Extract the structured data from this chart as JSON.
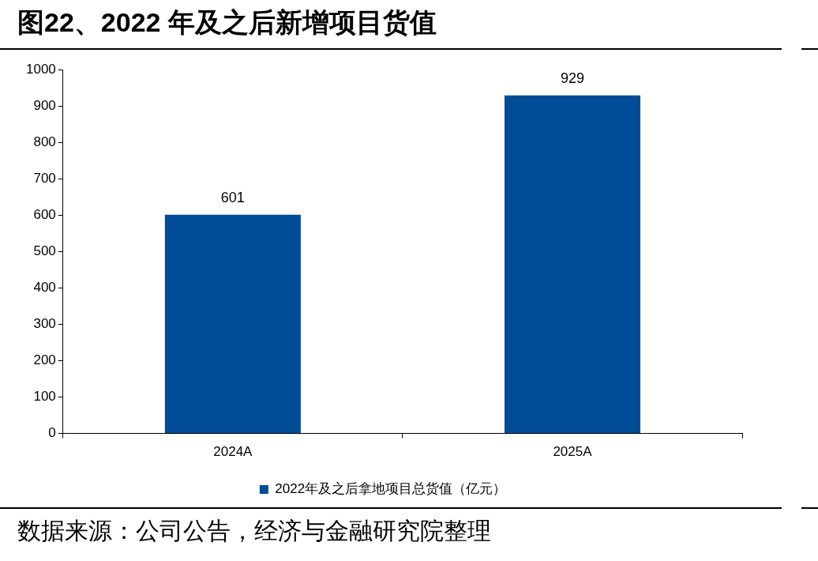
{
  "chart_data": {
    "type": "bar",
    "title": "图22、2022 年及之后新增项目货值",
    "categories": [
      "2024A",
      "2025A"
    ],
    "series": [
      {
        "name": "2022年及之后拿地项目总货值（亿元）",
        "color": "#004c97",
        "values": [
          601,
          929
        ]
      }
    ],
    "ylim": [
      0,
      1000
    ],
    "yticks": [
      0,
      100,
      200,
      300,
      400,
      500,
      600,
      700,
      800,
      900,
      1000
    ],
    "grid": false,
    "legend": "bottom",
    "data_labels": true,
    "annotations": [
      "数据来源：公司公告，经济与金融研究院整理"
    ]
  }
}
